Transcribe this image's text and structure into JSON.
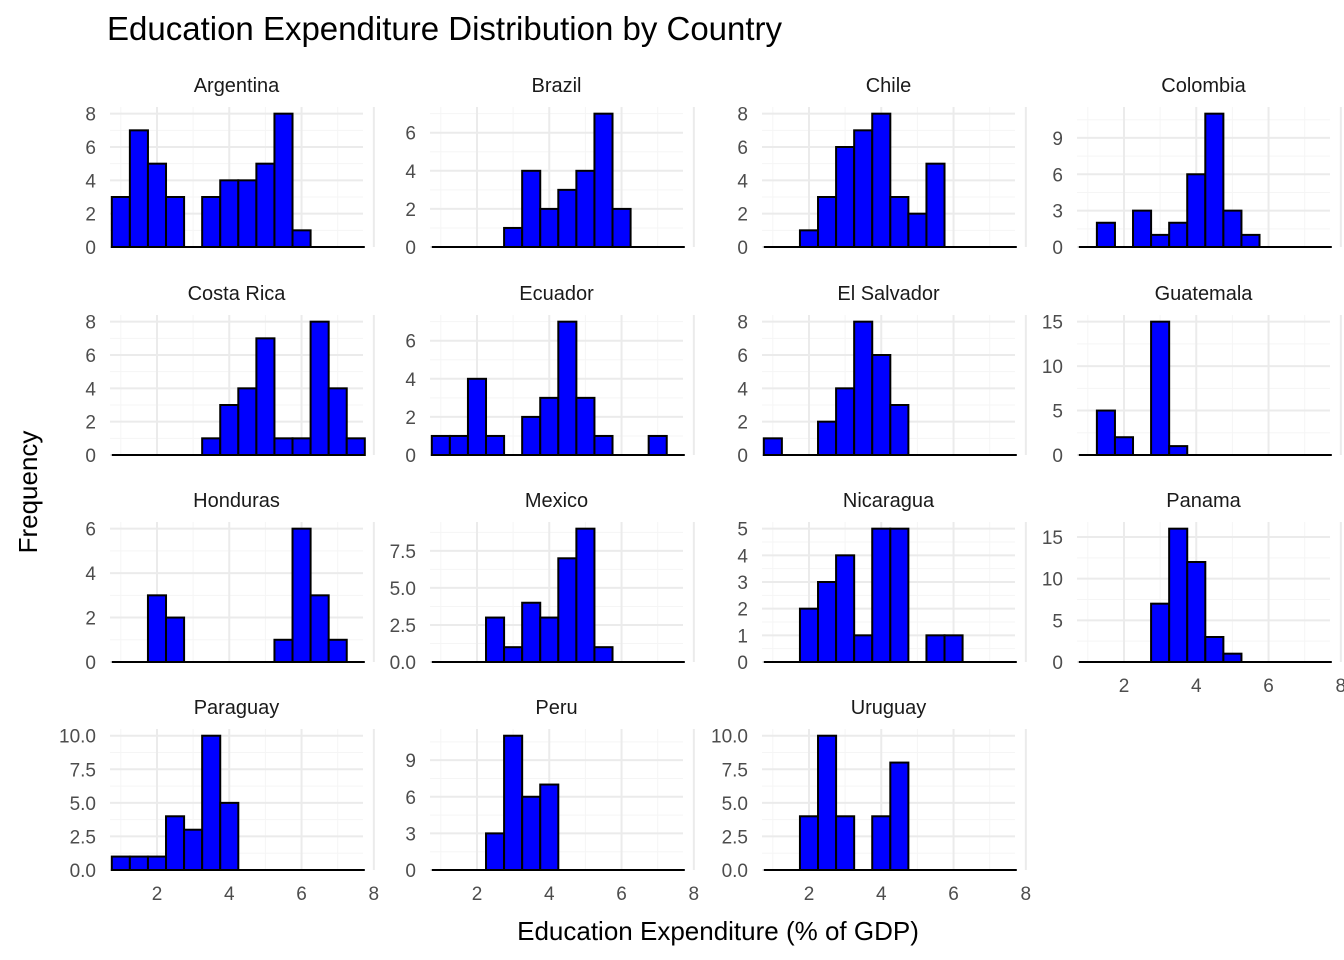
{
  "chart_data": {
    "type": "bar",
    "title": "Education Expenditure Distribution by Country",
    "xlabel": "Education Expenditure (% of GDP)",
    "ylabel": "Frequency",
    "bar_color": "#0000ff",
    "outline_color": "#000000",
    "grid": true,
    "xlim": [
      0.7,
      7.7
    ],
    "x_ticks": [
      2,
      4,
      6,
      8
    ],
    "x_tick_labels": [
      "2",
      "4",
      "6",
      "8"
    ],
    "bin_width": 0.5,
    "bin_starts": [
      0.75,
      1.25,
      1.75,
      2.25,
      2.75,
      3.25,
      3.75,
      4.25,
      4.75,
      5.25,
      5.75,
      6.25,
      6.75,
      7.25
    ],
    "panels": [
      {
        "name": "Argentina",
        "counts": [
          3,
          7,
          5,
          3,
          0,
          3,
          4,
          4,
          5,
          8,
          1,
          0,
          0,
          0
        ],
        "ylim": [
          0,
          8.4
        ],
        "y_ticks": [
          0,
          2,
          4,
          6,
          8
        ],
        "y_tick_labels": [
          "0",
          "2",
          "4",
          "6",
          "8"
        ],
        "show_x_labels": false
      },
      {
        "name": "Brazil",
        "counts": [
          0,
          0,
          0,
          0,
          1,
          4,
          2,
          3,
          4,
          7,
          2,
          0,
          0,
          0
        ],
        "ylim": [
          0,
          7.35
        ],
        "y_ticks": [
          0,
          2,
          4,
          6
        ],
        "y_tick_labels": [
          "0",
          "2",
          "4",
          "6"
        ],
        "show_x_labels": false
      },
      {
        "name": "Chile",
        "counts": [
          0,
          0,
          1,
          3,
          6,
          7,
          8,
          3,
          2,
          5,
          0,
          0,
          0,
          0
        ],
        "ylim": [
          0,
          8.4
        ],
        "y_ticks": [
          0,
          2,
          4,
          6,
          8
        ],
        "y_tick_labels": [
          "0",
          "2",
          "4",
          "6",
          "8"
        ],
        "show_x_labels": false
      },
      {
        "name": "Colombia",
        "counts": [
          0,
          2,
          0,
          3,
          1,
          2,
          6,
          11,
          3,
          1,
          0,
          0,
          0,
          0
        ],
        "ylim": [
          0,
          11.55
        ],
        "y_ticks": [
          0,
          3,
          6,
          9
        ],
        "y_tick_labels": [
          "0",
          "3",
          "6",
          "9"
        ],
        "show_x_labels": false
      },
      {
        "name": "Costa Rica",
        "counts": [
          0,
          0,
          0,
          0,
          0,
          1,
          3,
          4,
          7,
          1,
          1,
          8,
          4,
          1
        ],
        "ylim": [
          0,
          8.4
        ],
        "y_ticks": [
          0,
          2,
          4,
          6,
          8
        ],
        "y_tick_labels": [
          "0",
          "2",
          "4",
          "6",
          "8"
        ],
        "show_x_labels": false
      },
      {
        "name": "Ecuador",
        "counts": [
          1,
          1,
          4,
          1,
          0,
          2,
          3,
          7,
          3,
          1,
          0,
          0,
          1,
          0
        ],
        "ylim": [
          0,
          7.35
        ],
        "y_ticks": [
          0,
          2,
          4,
          6
        ],
        "y_tick_labels": [
          "0",
          "2",
          "4",
          "6"
        ],
        "show_x_labels": false
      },
      {
        "name": "El Salvador",
        "counts": [
          1,
          0,
          0,
          2,
          4,
          8,
          6,
          3,
          0,
          0,
          0,
          0,
          0,
          0
        ],
        "ylim": [
          0,
          8.4
        ],
        "y_ticks": [
          0,
          2,
          4,
          6,
          8
        ],
        "y_tick_labels": [
          "0",
          "2",
          "4",
          "6",
          "8"
        ],
        "show_x_labels": false
      },
      {
        "name": "Guatemala",
        "counts": [
          0,
          5,
          2,
          0,
          15,
          1,
          0,
          0,
          0,
          0,
          0,
          0,
          0,
          0
        ],
        "ylim": [
          0,
          15.75
        ],
        "y_ticks": [
          0,
          5,
          10,
          15
        ],
        "y_tick_labels": [
          "0",
          "5",
          "10",
          "15"
        ],
        "show_x_labels": false
      },
      {
        "name": "Honduras",
        "counts": [
          0,
          0,
          3,
          2,
          0,
          0,
          0,
          0,
          0,
          1,
          6,
          3,
          1,
          0
        ],
        "ylim": [
          0,
          6.3
        ],
        "y_ticks": [
          0,
          2,
          4,
          6
        ],
        "y_tick_labels": [
          "0",
          "2",
          "4",
          "6"
        ],
        "show_x_labels": false
      },
      {
        "name": "Mexico",
        "counts": [
          0,
          0,
          0,
          3,
          1,
          4,
          3,
          7,
          9,
          1,
          0,
          0,
          0,
          0
        ],
        "ylim": [
          0,
          9.45
        ],
        "y_ticks": [
          0,
          2.5,
          5,
          7.5
        ],
        "y_tick_labels": [
          "0.0",
          "2.5",
          "5.0",
          "7.5"
        ],
        "show_x_labels": false
      },
      {
        "name": "Nicaragua",
        "counts": [
          0,
          0,
          2,
          3,
          4,
          1,
          5,
          5,
          0,
          1,
          1,
          0,
          0,
          0
        ],
        "ylim": [
          0,
          5.25
        ],
        "y_ticks": [
          0,
          1,
          2,
          3,
          4,
          5
        ],
        "y_tick_labels": [
          "0",
          "1",
          "2",
          "3",
          "4",
          "5"
        ],
        "show_x_labels": false
      },
      {
        "name": "Panama",
        "counts": [
          0,
          0,
          0,
          0,
          7,
          16,
          12,
          3,
          1,
          0,
          0,
          0,
          0,
          0
        ],
        "ylim": [
          0,
          16.8
        ],
        "y_ticks": [
          0,
          5,
          10,
          15
        ],
        "y_tick_labels": [
          "0",
          "5",
          "10",
          "15"
        ],
        "show_x_labels": true
      },
      {
        "name": "Paraguay",
        "counts": [
          1,
          1,
          1,
          4,
          3,
          10,
          5,
          0,
          0,
          0,
          0,
          0,
          0,
          0
        ],
        "ylim": [
          0,
          10.5
        ],
        "y_ticks": [
          0,
          2.5,
          5,
          7.5,
          10
        ],
        "y_tick_labels": [
          "0.0",
          "2.5",
          "5.0",
          "7.5",
          "10.0"
        ],
        "show_x_labels": true
      },
      {
        "name": "Peru",
        "counts": [
          0,
          0,
          0,
          3,
          11,
          6,
          7,
          0,
          0,
          0,
          0,
          0,
          0,
          0
        ],
        "ylim": [
          0,
          11.55
        ],
        "y_ticks": [
          0,
          3,
          6,
          9
        ],
        "y_tick_labels": [
          "0",
          "3",
          "6",
          "9"
        ],
        "show_x_labels": true
      },
      {
        "name": "Uruguay",
        "counts": [
          0,
          0,
          4,
          10,
          4,
          0,
          4,
          8,
          0,
          0,
          0,
          0,
          0,
          0
        ],
        "ylim": [
          0,
          10.5
        ],
        "y_ticks": [
          0,
          2.5,
          5,
          7.5,
          10
        ],
        "y_tick_labels": [
          "0.0",
          "2.5",
          "5.0",
          "7.5",
          "10.0"
        ],
        "show_x_labels": true
      }
    ]
  }
}
